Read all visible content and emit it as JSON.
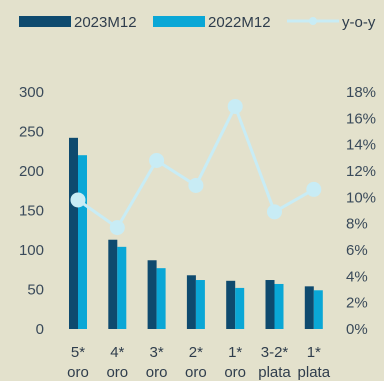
{
  "chart_data": {
    "type": "bar",
    "categories": [
      [
        "5*",
        "oro"
      ],
      [
        "4*",
        "oro"
      ],
      [
        "3*",
        "oro"
      ],
      [
        "2*",
        "oro"
      ],
      [
        "1*",
        "oro"
      ],
      [
        "3-2*",
        "plata"
      ],
      [
        "1*",
        "plata"
      ]
    ],
    "series": [
      {
        "name": "2023M12",
        "kind": "bar",
        "axis": "left",
        "color": "#0e4a6e",
        "values": [
          242,
          113,
          87,
          68,
          61,
          62,
          54
        ]
      },
      {
        "name": "2022M12",
        "kind": "bar",
        "axis": "left",
        "color": "#0aa7d6",
        "values": [
          220,
          104,
          77,
          62,
          52,
          57,
          49
        ]
      },
      {
        "name": "y-o-y",
        "kind": "line",
        "axis": "right",
        "color": "#c8ecf5",
        "values": [
          9.8,
          7.7,
          12.8,
          10.9,
          16.9,
          8.9,
          10.6
        ]
      }
    ],
    "y_left": {
      "min": 0,
      "max": 300,
      "ticks": [
        0,
        50,
        100,
        150,
        200,
        250,
        300
      ]
    },
    "y_right": {
      "min": 0,
      "max": 18,
      "ticks": [
        "0%",
        "2%",
        "4%",
        "6%",
        "8%",
        "10%",
        "12%",
        "14%",
        "16%",
        "18%"
      ]
    },
    "legend_position": "top",
    "grid": false
  }
}
